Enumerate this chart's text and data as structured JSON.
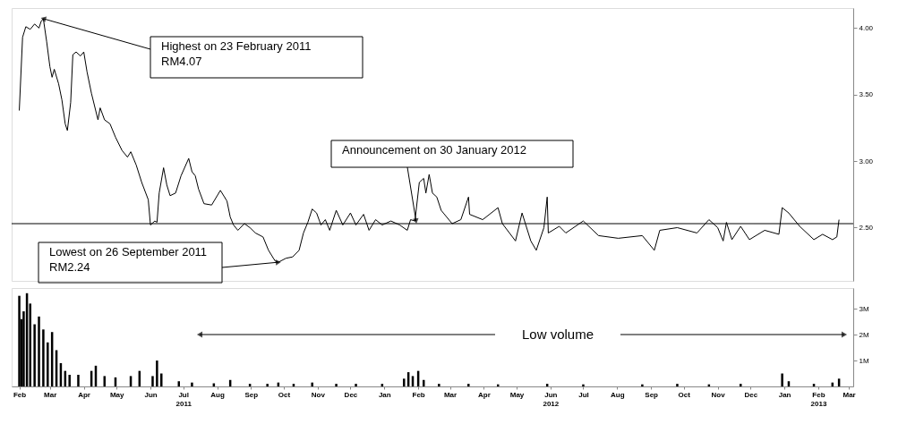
{
  "chart_data": [
    {
      "type": "line",
      "color": "#000000",
      "xlim": [
        "2011-01-25",
        "2013-03-05"
      ],
      "ylim": [
        2.1,
        4.15
      ],
      "tick_labels": "y",
      "yticks": [
        {
          "value": 2.5,
          "label": "2.50"
        },
        {
          "value": 3,
          "label": "3.00"
        },
        {
          "value": 3.5,
          "label": "3.50"
        },
        {
          "value": 4,
          "label": "4.00"
        }
      ],
      "ref_lines": [
        {
          "axis": "y",
          "value": 2.53,
          "color": "#000000"
        }
      ],
      "annotations": [
        {
          "text": "Highest on 23 February 2011\nRM4.07",
          "x": "2011-02-23",
          "y": 4.07
        },
        {
          "text": "Announcement on 30 January 2012",
          "x": "2012-01-30",
          "y": 2.55
        },
        {
          "text": "Lowest on 26 September 2011\nRM2.24",
          "x": "2011-09-26",
          "y": 2.24
        }
      ],
      "x": [
        "2011-02-01",
        "2011-02-04",
        "2011-02-07",
        "2011-02-11",
        "2011-02-15",
        "2011-02-19",
        "2011-02-21",
        "2011-02-23",
        "2011-02-26",
        "2011-03-01",
        "2011-03-03",
        "2011-03-05",
        "2011-03-09",
        "2011-03-12",
        "2011-03-15",
        "2011-03-17",
        "2011-03-20",
        "2011-03-22",
        "2011-03-25",
        "2011-03-29",
        "2011-04-01",
        "2011-04-04",
        "2011-04-08",
        "2011-04-14",
        "2011-04-16",
        "2011-04-20",
        "2011-04-25",
        "2011-04-30",
        "2011-05-06",
        "2011-05-11",
        "2011-05-14",
        "2011-05-19",
        "2011-05-24",
        "2011-05-30",
        "2011-06-01",
        "2011-06-05",
        "2011-06-07",
        "2011-06-09",
        "2011-06-13",
        "2011-06-16",
        "2011-06-19",
        "2011-06-24",
        "2011-06-29",
        "2011-07-06",
        "2011-07-09",
        "2011-07-12",
        "2011-07-15",
        "2011-07-20",
        "2011-07-27",
        "2011-08-04",
        "2011-08-10",
        "2011-08-13",
        "2011-08-16",
        "2011-08-20",
        "2011-08-26",
        "2011-08-31",
        "2011-09-05",
        "2011-09-12",
        "2011-09-17",
        "2011-09-23",
        "2011-09-26",
        "2011-10-03",
        "2011-10-09",
        "2011-10-15",
        "2011-10-19",
        "2011-10-23",
        "2011-10-27",
        "2011-10-31",
        "2011-11-04",
        "2011-11-08",
        "2011-11-12",
        "2011-11-18",
        "2011-11-24",
        "2011-12-01",
        "2011-12-06",
        "2011-12-13",
        "2011-12-18",
        "2011-12-24",
        "2011-12-30",
        "2012-01-07",
        "2012-01-15",
        "2012-01-22",
        "2012-01-25",
        "2012-01-29",
        "2012-02-02",
        "2012-02-06",
        "2012-02-08",
        "2012-02-11",
        "2012-02-14",
        "2012-02-18",
        "2012-02-22",
        "2012-02-24",
        "2012-03-03",
        "2012-03-11",
        "2012-03-18",
        "2012-03-19",
        "2012-03-31",
        "2012-04-14",
        "2012-04-18",
        "2012-04-30",
        "2012-05-06",
        "2012-05-14",
        "2012-05-19",
        "2012-05-26",
        "2012-05-29",
        "2012-05-30",
        "2012-06-09",
        "2012-06-15",
        "2012-07-01",
        "2012-07-15",
        "2012-08-02",
        "2012-08-24",
        "2012-09-04",
        "2012-09-09",
        "2012-09-25",
        "2012-10-13",
        "2012-10-24",
        "2012-11-01",
        "2012-11-06",
        "2012-11-09",
        "2012-11-14",
        "2012-11-22",
        "2012-11-30",
        "2012-12-14",
        "2012-12-27",
        "2012-12-30",
        "2013-01-05",
        "2013-01-15",
        "2013-01-28",
        "2013-02-05",
        "2013-02-14",
        "2013-02-18",
        "2013-02-20"
      ],
      "values": [
        3.38,
        3.93,
        4.01,
        3.99,
        4.03,
        4.0,
        4.05,
        4.07,
        3.9,
        3.71,
        3.63,
        3.69,
        3.58,
        3.46,
        3.28,
        3.23,
        3.44,
        3.8,
        3.82,
        3.79,
        3.82,
        3.67,
        3.51,
        3.31,
        3.4,
        3.31,
        3.28,
        3.18,
        3.08,
        3.03,
        3.07,
        2.97,
        2.84,
        2.71,
        2.52,
        2.55,
        2.54,
        2.76,
        2.95,
        2.82,
        2.74,
        2.76,
        2.89,
        3.02,
        2.92,
        2.89,
        2.79,
        2.68,
        2.67,
        2.78,
        2.7,
        2.58,
        2.52,
        2.48,
        2.53,
        2.5,
        2.46,
        2.43,
        2.33,
        2.25,
        2.24,
        2.27,
        2.28,
        2.33,
        2.46,
        2.54,
        2.64,
        2.61,
        2.52,
        2.56,
        2.48,
        2.63,
        2.52,
        2.61,
        2.52,
        2.6,
        2.48,
        2.56,
        2.52,
        2.55,
        2.52,
        2.48,
        2.56,
        2.55,
        2.84,
        2.87,
        2.76,
        2.9,
        2.76,
        2.73,
        2.63,
        2.61,
        2.53,
        2.56,
        2.73,
        2.6,
        2.56,
        2.65,
        2.53,
        2.4,
        2.61,
        2.4,
        2.33,
        2.5,
        2.73,
        2.46,
        2.51,
        2.46,
        2.55,
        2.44,
        2.42,
        2.44,
        2.33,
        2.48,
        2.5,
        2.46,
        2.56,
        2.5,
        2.4,
        2.54,
        2.41,
        2.51,
        2.41,
        2.48,
        2.45,
        2.65,
        2.61,
        2.51,
        2.41,
        2.45,
        2.41,
        2.43,
        2.56
      ]
    },
    {
      "type": "bar",
      "color": "#000000",
      "xlim": [
        "2011-01-25",
        "2013-03-05"
      ],
      "ylim": [
        0,
        3.8
      ],
      "yticks": [
        {
          "value": 1,
          "label": "1M"
        },
        {
          "value": 2,
          "label": "2M"
        },
        {
          "value": 3,
          "label": "3M"
        }
      ],
      "xticks": [
        {
          "value": "2011-02-01",
          "label": "Feb"
        },
        {
          "value": "2011-03-01",
          "label": "Mar"
        },
        {
          "value": "2011-04-01",
          "label": "Apr"
        },
        {
          "value": "2011-05-01",
          "label": "May"
        },
        {
          "value": "2011-06-01",
          "label": "Jun"
        },
        {
          "value": "2011-07-01",
          "label": "Jul\n2011"
        },
        {
          "value": "2011-08-01",
          "label": "Aug"
        },
        {
          "value": "2011-09-01",
          "label": "Sep"
        },
        {
          "value": "2011-10-01",
          "label": "Oct"
        },
        {
          "value": "2011-11-01",
          "label": "Nov"
        },
        {
          "value": "2011-12-01",
          "label": "Dec"
        },
        {
          "value": "2012-01-01",
          "label": "Jan"
        },
        {
          "value": "2012-02-01",
          "label": "Feb"
        },
        {
          "value": "2012-03-01",
          "label": "Mar"
        },
        {
          "value": "2012-04-01",
          "label": "Apr"
        },
        {
          "value": "2012-05-01",
          "label": "May"
        },
        {
          "value": "2012-06-01",
          "label": "Jun\n2012"
        },
        {
          "value": "2012-07-01",
          "label": "Jul"
        },
        {
          "value": "2012-08-01",
          "label": "Aug"
        },
        {
          "value": "2012-09-01",
          "label": "Sep"
        },
        {
          "value": "2012-10-01",
          "label": "Oct"
        },
        {
          "value": "2012-11-01",
          "label": "Nov"
        },
        {
          "value": "2012-12-01",
          "label": "Dec"
        },
        {
          "value": "2013-01-01",
          "label": "Jan"
        },
        {
          "value": "2013-02-01",
          "label": "Feb\n2013"
        },
        {
          "value": "2013-03-01",
          "label": "Mar"
        }
      ],
      "annotations": [
        "Low volume"
      ],
      "x": [
        "2011-02-01",
        "2011-02-03",
        "2011-02-05",
        "2011-02-08",
        "2011-02-11",
        "2011-02-15",
        "2011-02-19",
        "2011-02-23",
        "2011-02-27",
        "2011-03-03",
        "2011-03-07",
        "2011-03-11",
        "2011-03-15",
        "2011-03-19",
        "2011-03-27",
        "2011-04-08",
        "2011-04-12",
        "2011-04-20",
        "2011-04-30",
        "2011-05-14",
        "2011-05-22",
        "2011-06-03",
        "2011-06-07",
        "2011-06-11",
        "2011-06-27",
        "2011-07-09",
        "2011-07-29",
        "2011-08-13",
        "2011-08-31",
        "2011-09-16",
        "2011-09-26",
        "2011-10-10",
        "2011-10-27",
        "2011-11-18",
        "2011-12-06",
        "2011-12-30",
        "2012-01-19",
        "2012-01-23",
        "2012-01-27",
        "2012-02-01",
        "2012-02-06",
        "2012-02-20",
        "2012-03-18",
        "2012-04-14",
        "2012-05-29",
        "2012-07-01",
        "2012-08-24",
        "2012-09-25",
        "2012-10-24",
        "2012-11-22",
        "2012-12-30",
        "2013-01-05",
        "2013-01-28",
        "2013-02-14",
        "2013-02-20"
      ],
      "values": [
        3.5,
        2.6,
        2.9,
        3.6,
        3.2,
        2.4,
        2.7,
        2.2,
        1.7,
        2.1,
        1.4,
        0.9,
        0.6,
        0.45,
        0.45,
        0.6,
        0.8,
        0.4,
        0.35,
        0.4,
        0.6,
        0.4,
        1.0,
        0.5,
        0.2,
        0.15,
        0.12,
        0.25,
        0.1,
        0.1,
        0.15,
        0.1,
        0.15,
        0.1,
        0.1,
        0.1,
        0.3,
        0.55,
        0.4,
        0.6,
        0.25,
        0.1,
        0.1,
        0.08,
        0.1,
        0.08,
        0.08,
        0.1,
        0.08,
        0.1,
        0.5,
        0.2,
        0.1,
        0.15,
        0.3
      ]
    }
  ]
}
